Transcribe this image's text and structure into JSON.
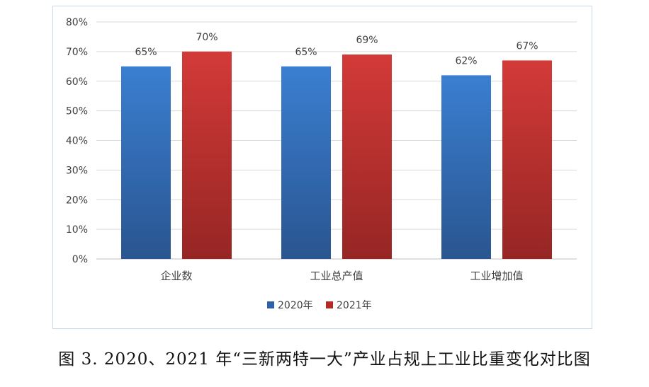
{
  "chart_data": {
    "type": "bar",
    "categories": [
      "企业数",
      "工业总产值",
      "工业增加值"
    ],
    "series": [
      {
        "name": "2020年",
        "values": [
          65,
          65,
          62
        ],
        "labels": [
          "65%",
          "65%",
          "62%"
        ],
        "color": "#2e62a8"
      },
      {
        "name": "2021年",
        "values": [
          70,
          69,
          67
        ],
        "labels": [
          "70%",
          "69%",
          "67%"
        ],
        "color": "#b52a29"
      }
    ],
    "ylim": [
      0,
      80
    ],
    "yticks": [
      "0%",
      "10%",
      "20%",
      "30%",
      "40%",
      "50%",
      "60%",
      "70%",
      "80%"
    ],
    "grid": true,
    "legend": "bottom"
  },
  "caption": "图 3. 2020、2021 年“三新两特一大”产业占规上工业比重变化对比图"
}
